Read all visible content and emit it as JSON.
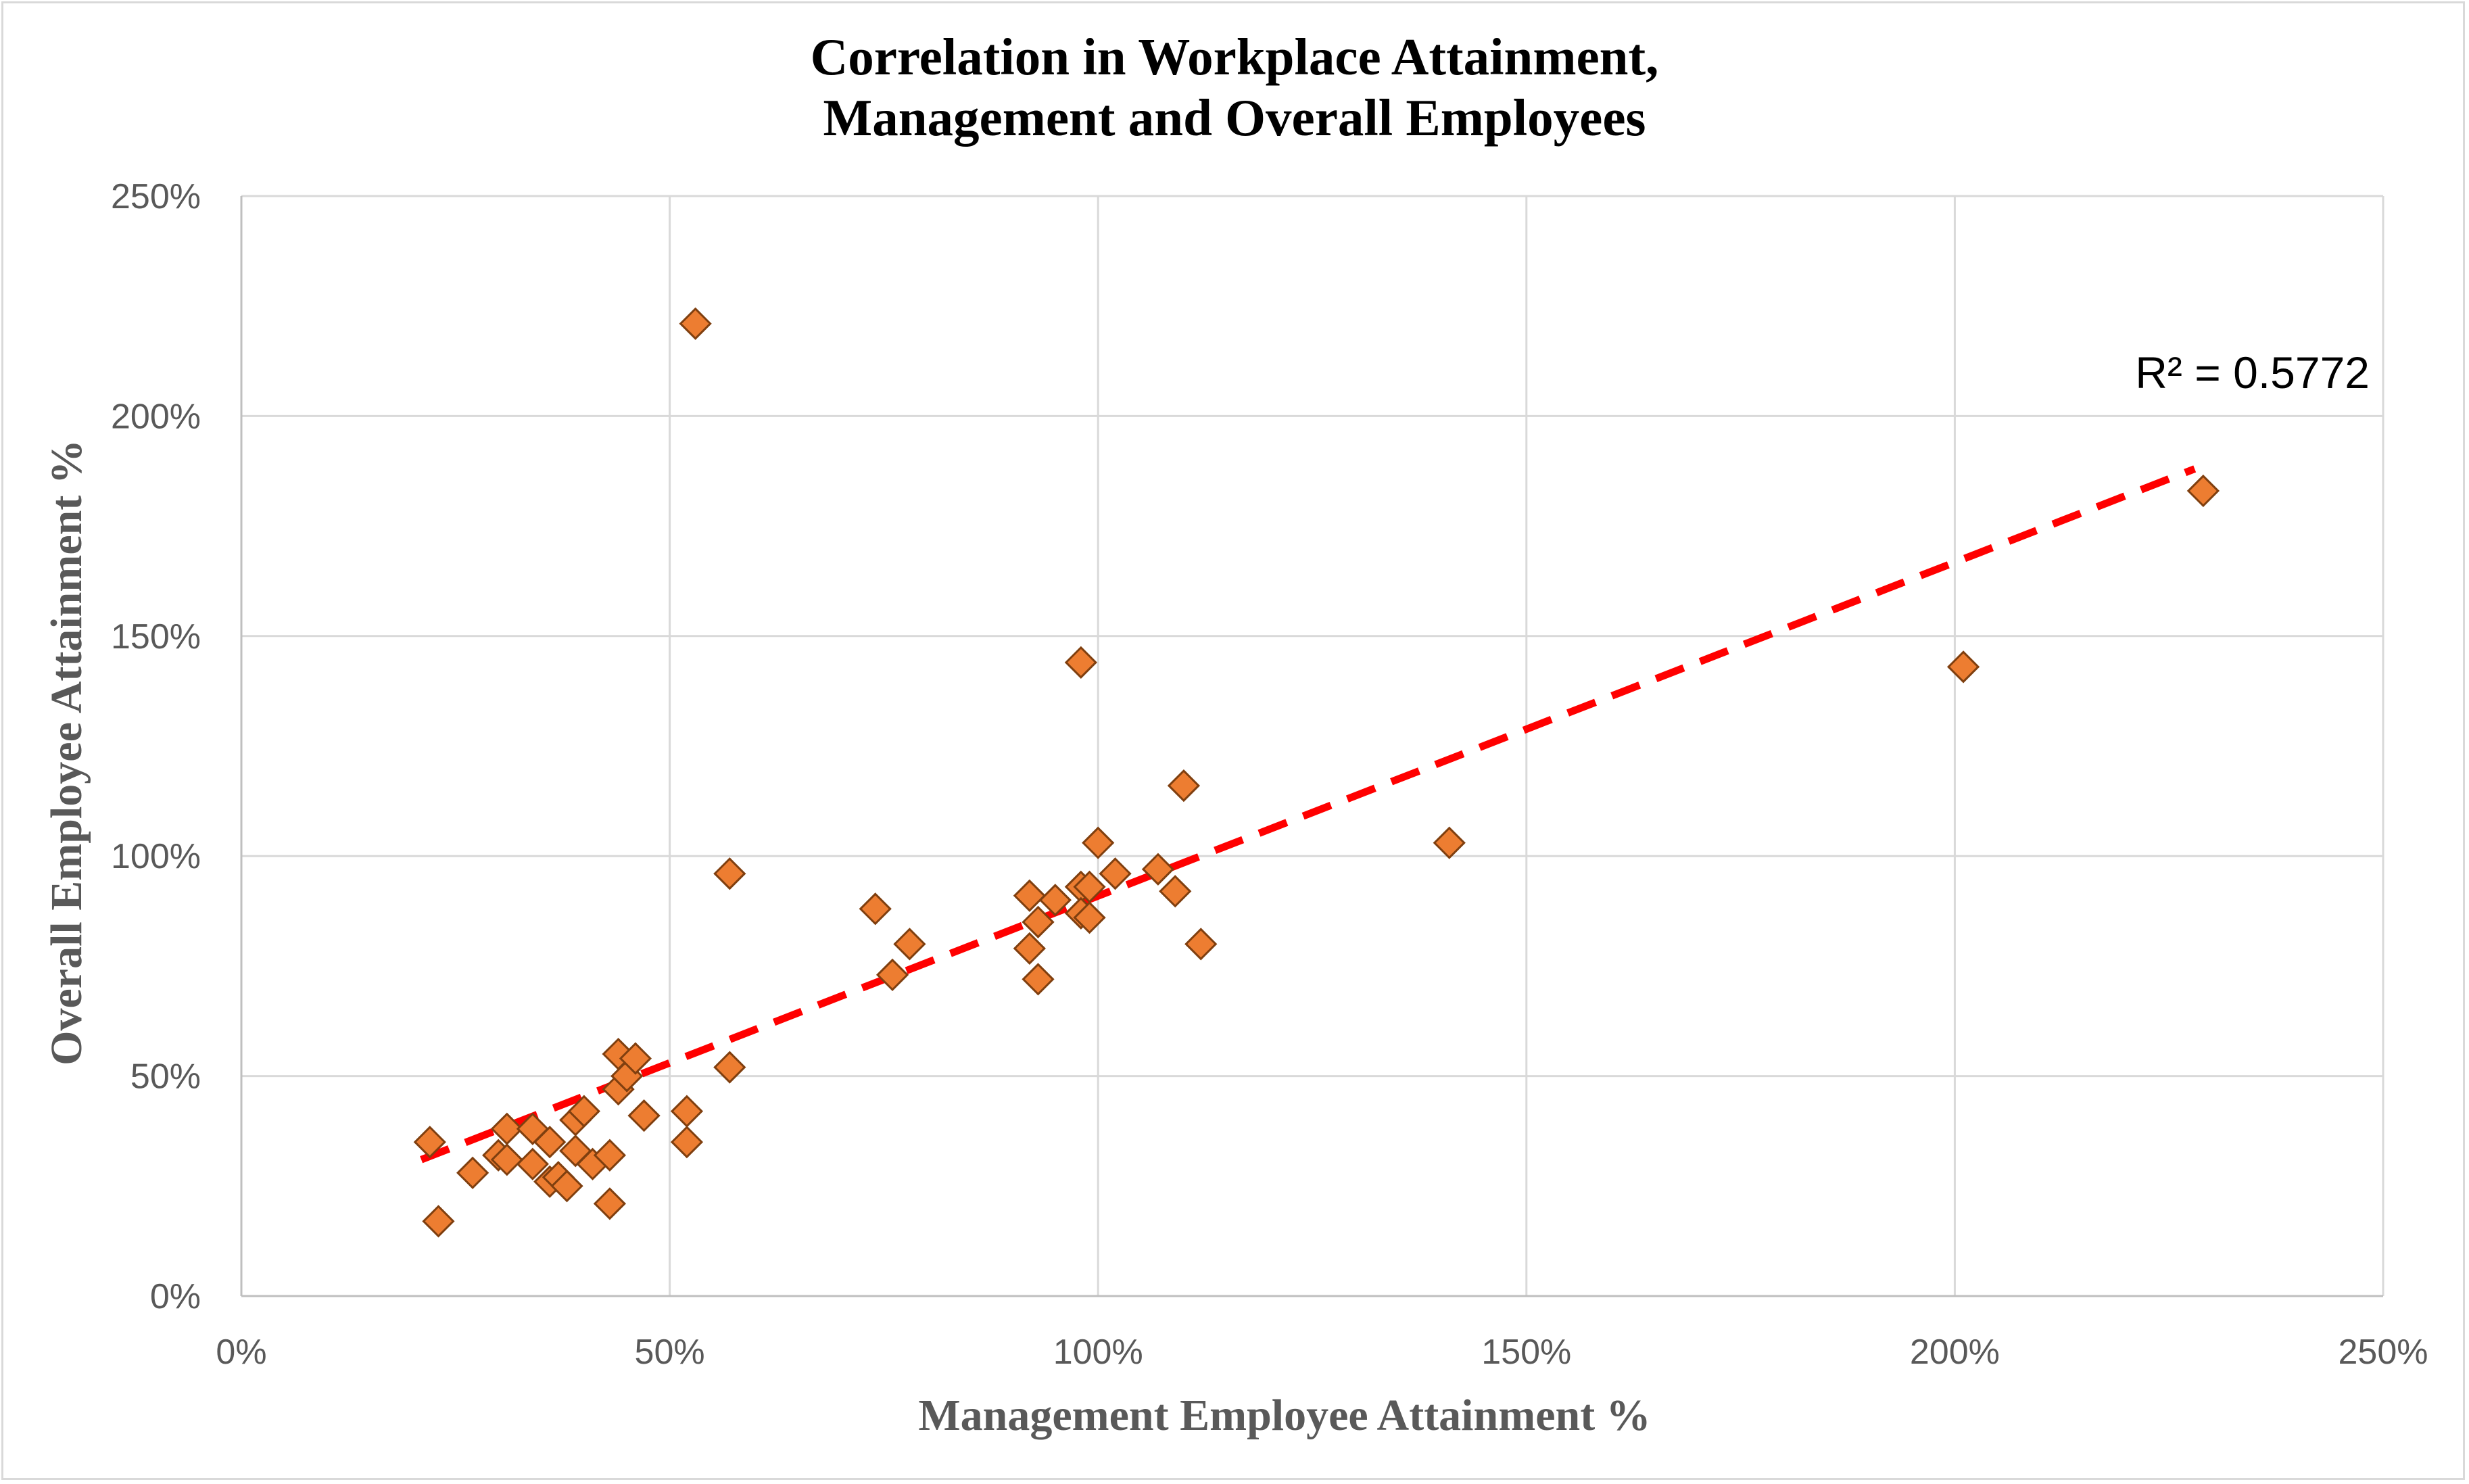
{
  "chart_data": {
    "type": "scatter",
    "title_lines": [
      "Correlation in Workplace Attainment,",
      "Management and Overall Employees"
    ],
    "xlabel": "Management Employee Attainment %",
    "ylabel": "Overall Employee Attainment %",
    "xlim": [
      0,
      2.5
    ],
    "ylim": [
      0,
      2.5
    ],
    "x_ticks": [
      0,
      0.5,
      1.0,
      1.5,
      2.0,
      2.5
    ],
    "y_ticks": [
      0,
      0.5,
      1.0,
      1.5,
      2.0,
      2.5
    ],
    "x_tick_labels": [
      "0%",
      "50%",
      "100%",
      "150%",
      "200%",
      "250%"
    ],
    "y_tick_labels": [
      "0%",
      "50%",
      "100%",
      "150%",
      "200%",
      "250%"
    ],
    "grid": true,
    "marker": "diamond",
    "marker_color": "#ED7D31",
    "marker_edge_color": "#7F3F0F",
    "points": [
      {
        "x": 0.22,
        "y": 0.35
      },
      {
        "x": 0.23,
        "y": 0.17
      },
      {
        "x": 0.27,
        "y": 0.28
      },
      {
        "x": 0.3,
        "y": 0.32
      },
      {
        "x": 0.31,
        "y": 0.38
      },
      {
        "x": 0.31,
        "y": 0.31
      },
      {
        "x": 0.34,
        "y": 0.38
      },
      {
        "x": 0.34,
        "y": 0.3
      },
      {
        "x": 0.36,
        "y": 0.35
      },
      {
        "x": 0.36,
        "y": 0.26
      },
      {
        "x": 0.37,
        "y": 0.27
      },
      {
        "x": 0.38,
        "y": 0.25
      },
      {
        "x": 0.39,
        "y": 0.33
      },
      {
        "x": 0.39,
        "y": 0.4
      },
      {
        "x": 0.4,
        "y": 0.42
      },
      {
        "x": 0.41,
        "y": 0.3
      },
      {
        "x": 0.43,
        "y": 0.32
      },
      {
        "x": 0.43,
        "y": 0.21
      },
      {
        "x": 0.44,
        "y": 0.55
      },
      {
        "x": 0.44,
        "y": 0.47
      },
      {
        "x": 0.45,
        "y": 0.5
      },
      {
        "x": 0.46,
        "y": 0.54
      },
      {
        "x": 0.47,
        "y": 0.41
      },
      {
        "x": 0.52,
        "y": 0.42
      },
      {
        "x": 0.52,
        "y": 0.35
      },
      {
        "x": 0.53,
        "y": 2.21
      },
      {
        "x": 0.57,
        "y": 0.52
      },
      {
        "x": 0.57,
        "y": 0.96
      },
      {
        "x": 0.74,
        "y": 0.88
      },
      {
        "x": 0.76,
        "y": 0.73
      },
      {
        "x": 0.78,
        "y": 0.8
      },
      {
        "x": 0.92,
        "y": 0.91
      },
      {
        "x": 0.92,
        "y": 0.79
      },
      {
        "x": 0.93,
        "y": 0.85
      },
      {
        "x": 0.93,
        "y": 0.72
      },
      {
        "x": 0.95,
        "y": 0.9
      },
      {
        "x": 0.98,
        "y": 0.93
      },
      {
        "x": 0.98,
        "y": 0.87
      },
      {
        "x": 0.98,
        "y": 1.44
      },
      {
        "x": 0.99,
        "y": 0.93
      },
      {
        "x": 0.99,
        "y": 0.86
      },
      {
        "x": 1.0,
        "y": 1.03
      },
      {
        "x": 1.02,
        "y": 0.96
      },
      {
        "x": 1.07,
        "y": 0.97
      },
      {
        "x": 1.09,
        "y": 0.92
      },
      {
        "x": 1.1,
        "y": 1.16
      },
      {
        "x": 1.12,
        "y": 0.8
      },
      {
        "x": 1.41,
        "y": 1.03
      },
      {
        "x": 2.01,
        "y": 1.43
      },
      {
        "x": 2.29,
        "y": 1.83
      }
    ],
    "trendline": {
      "type": "linear",
      "start": {
        "x": 0.21,
        "y": 0.31
      },
      "end": {
        "x": 2.28,
        "y": 1.88
      },
      "color": "#FF0000",
      "style": "dashed",
      "r_squared_label": "R² = 0.5772"
    }
  }
}
